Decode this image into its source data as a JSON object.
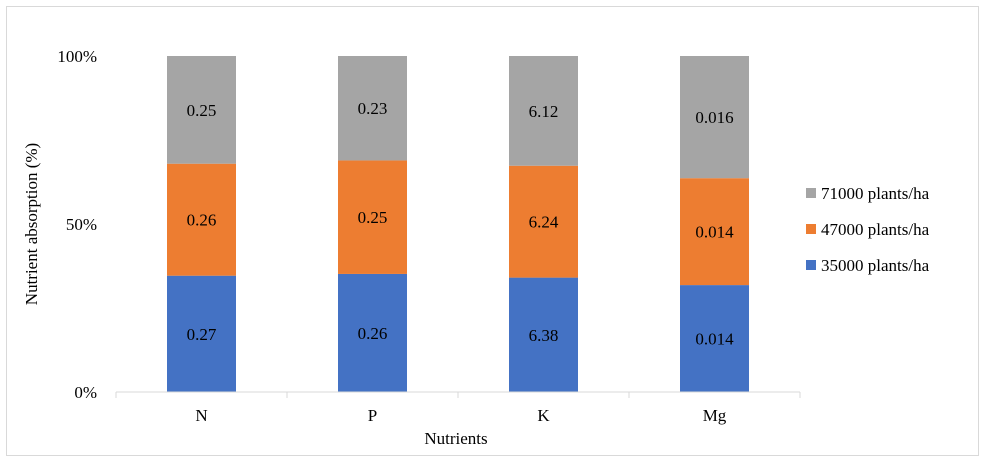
{
  "chart_data": {
    "type": "bar",
    "stacked": "percent",
    "categories": [
      "N",
      "P",
      "K",
      "Mg"
    ],
    "series": [
      {
        "name": "35000 plants/ha",
        "values": [
          0.27,
          0.26,
          6.38,
          0.014
        ],
        "labels": [
          "0.27",
          "0.26",
          "6.38",
          "0.014"
        ],
        "color": "#4472c4"
      },
      {
        "name": "47000 plants/ha",
        "values": [
          0.26,
          0.25,
          6.24,
          0.014
        ],
        "labels": [
          "0.26",
          "0.25",
          "6.24",
          "0.014"
        ],
        "color": "#ed7d31"
      },
      {
        "name": "71000 plants/ha",
        "values": [
          0.25,
          0.23,
          6.12,
          0.016
        ],
        "labels": [
          "0.25",
          "0.23",
          "6.12",
          "0.016"
        ],
        "color": "#a5a5a5"
      }
    ],
    "xlabel": "Nutrients",
    "ylabel": "Nutrient absorption (%)",
    "yticks": [
      "0%",
      "50%",
      "100%"
    ],
    "ylim": [
      0,
      100
    ],
    "grid": false,
    "legend": "right"
  }
}
